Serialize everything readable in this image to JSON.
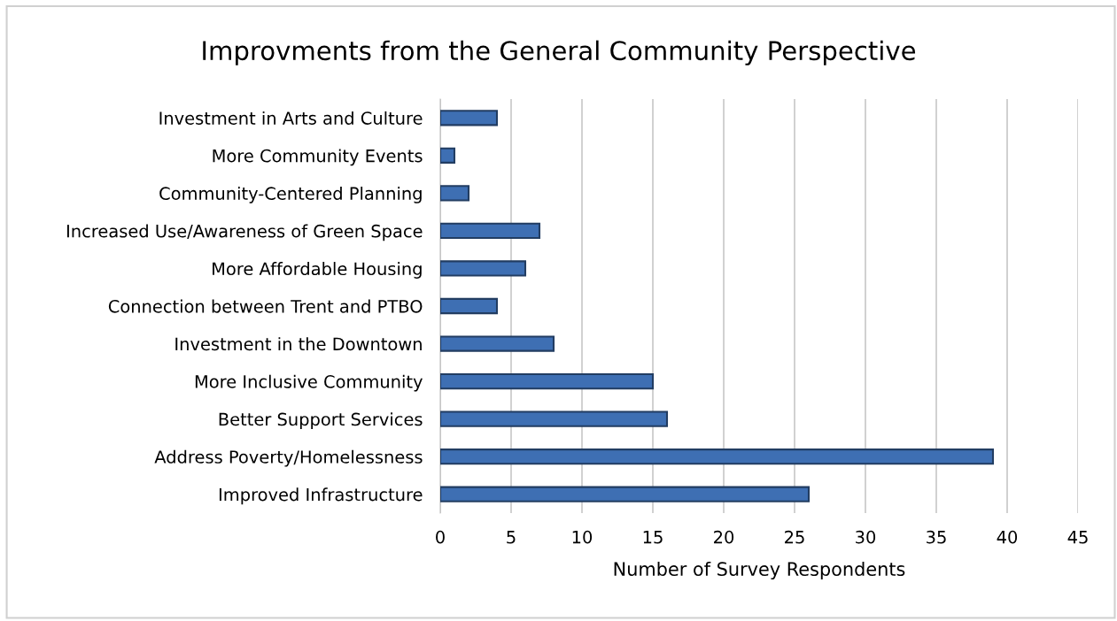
{
  "chart_data": {
    "type": "bar",
    "orientation": "horizontal",
    "title": "Improvments from the General Community Perspective",
    "xlabel": "Number of Survey Respondents",
    "categories": [
      "Investment in Arts and Culture",
      "More Community Events",
      "Community-Centered Planning",
      "Increased Use/Awareness of Green Space",
      "More Affordable Housing",
      "Connection between Trent and PTBO",
      "Investment in the Downtown",
      "More Inclusive Community",
      "Better Support Services",
      "Address Poverty/Homelessness",
      "Improved Infrastructure"
    ],
    "values": [
      4,
      1,
      2,
      7,
      6,
      4,
      8,
      15,
      16,
      39,
      26
    ],
    "color": "#3e6fb3",
    "xlim": [
      0,
      45
    ],
    "xticks": [
      0,
      5,
      10,
      15,
      20,
      25,
      30,
      35,
      40,
      45
    ],
    "grid": "x",
    "legend": false
  }
}
